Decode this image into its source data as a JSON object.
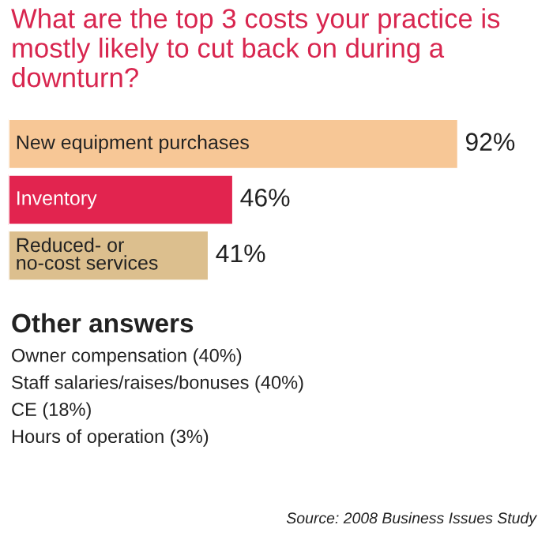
{
  "chart_data": {
    "type": "bar",
    "orientation": "horizontal",
    "title": "What are the top 3 costs your practice is mostly likely to cut back on during a downturn?",
    "categories": [
      "New equipment purchases",
      "Inventory",
      "Reduced- or\nno-cost services"
    ],
    "values": [
      92,
      46,
      41
    ],
    "colors": [
      "#f7c796",
      "#e2244f",
      "#dcbf8e"
    ],
    "value_labels": [
      "92%",
      "46%",
      "41%"
    ],
    "annotations": [
      "Other answers",
      "Owner compensation (40%)",
      "Staff salaries/raises/bonuses (40%)",
      "CE (18%)",
      "Hours of operation (3%)",
      "Source: 2008 Business Issues Study"
    ]
  }
}
